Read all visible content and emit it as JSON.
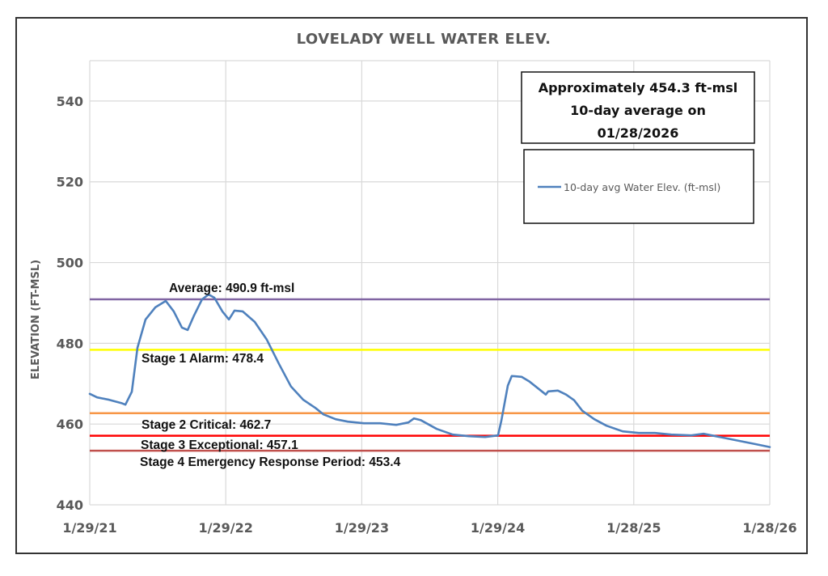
{
  "chart_data": {
    "type": "line",
    "title": "LOVELADY WELL WATER ELEV.",
    "xlabel": "",
    "ylabel": "ELEVATION (FT-MSL)",
    "ylim": [
      440,
      550
    ],
    "yticks": [
      440,
      460,
      480,
      500,
      520,
      540
    ],
    "ytick_labels": [
      "440",
      "460",
      "480",
      "500",
      "520",
      "540"
    ],
    "xlim_years_since_start": [
      0,
      5
    ],
    "xtick_labels": [
      "1/29/21",
      "1/29/22",
      "1/29/23",
      "1/29/24",
      "1/28/25",
      "1/28/26"
    ],
    "xtick_positions_years_since_start": [
      0,
      1,
      2,
      3,
      4,
      5
    ],
    "grid": true,
    "legend_placement": "top-right",
    "series": [
      {
        "name": "10-day avg Water Elev. (ft-msl)",
        "color": "#4f81bd",
        "x_unit": "years since 1/29/21",
        "points": [
          [
            0.0,
            467.5
          ],
          [
            0.054,
            466.6
          ],
          [
            0.143,
            466.0
          ],
          [
            0.232,
            465.2
          ],
          [
            0.262,
            464.8
          ],
          [
            0.309,
            468.0
          ],
          [
            0.351,
            478.9
          ],
          [
            0.41,
            485.9
          ],
          [
            0.482,
            488.9
          ],
          [
            0.559,
            490.5
          ],
          [
            0.618,
            487.9
          ],
          [
            0.678,
            483.9
          ],
          [
            0.72,
            483.3
          ],
          [
            0.767,
            486.9
          ],
          [
            0.826,
            490.9
          ],
          [
            0.874,
            492.1
          ],
          [
            0.916,
            491.3
          ],
          [
            0.975,
            487.9
          ],
          [
            1.023,
            485.9
          ],
          [
            1.064,
            488.1
          ],
          [
            1.124,
            487.9
          ],
          [
            1.213,
            485.3
          ],
          [
            1.302,
            480.9
          ],
          [
            1.391,
            474.9
          ],
          [
            1.48,
            469.3
          ],
          [
            1.57,
            466.0
          ],
          [
            1.659,
            464.0
          ],
          [
            1.718,
            462.4
          ],
          [
            1.808,
            461.2
          ],
          [
            1.897,
            460.6
          ],
          [
            2.016,
            460.2
          ],
          [
            2.135,
            460.2
          ],
          [
            2.253,
            459.8
          ],
          [
            2.343,
            460.4
          ],
          [
            2.384,
            461.4
          ],
          [
            2.432,
            461.0
          ],
          [
            2.551,
            458.8
          ],
          [
            2.669,
            457.4
          ],
          [
            2.788,
            457.0
          ],
          [
            2.907,
            456.8
          ],
          [
            3.002,
            457.2
          ],
          [
            3.026,
            460.8
          ],
          [
            3.074,
            469.5
          ],
          [
            3.103,
            471.9
          ],
          [
            3.175,
            471.7
          ],
          [
            3.234,
            470.5
          ],
          [
            3.294,
            468.9
          ],
          [
            3.353,
            467.3
          ],
          [
            3.371,
            468.1
          ],
          [
            3.442,
            468.3
          ],
          [
            3.502,
            467.3
          ],
          [
            3.561,
            465.9
          ],
          [
            3.621,
            463.3
          ],
          [
            3.71,
            461.2
          ],
          [
            3.799,
            459.6
          ],
          [
            3.918,
            458.2
          ],
          [
            4.037,
            457.8
          ],
          [
            4.156,
            457.8
          ],
          [
            4.275,
            457.4
          ],
          [
            4.423,
            457.2
          ],
          [
            4.513,
            457.6
          ],
          [
            4.602,
            457.0
          ],
          [
            4.75,
            456.0
          ],
          [
            4.899,
            455.0
          ],
          [
            5.0,
            454.3
          ]
        ]
      }
    ],
    "reference_lines": [
      {
        "name": "average",
        "label": "Average: 490.9 ft-msl",
        "value": 490.9,
        "color": "#8064a2"
      },
      {
        "name": "stage-1",
        "label": "Stage 1 Alarm: 478.4",
        "value": 478.4,
        "color": "#ffff00"
      },
      {
        "name": "stage-2",
        "label": "Stage 2 Critical: 462.7",
        "value": 462.7,
        "color": "#f79646"
      },
      {
        "name": "stage-3",
        "label": "Stage 3 Exceptional: 457.1",
        "value": 457.1,
        "color": "#ff0000"
      },
      {
        "name": "stage-4",
        "label": "Stage 4 Emergency Response Period: 453.4",
        "value": 453.4,
        "color": "#c0504d"
      }
    ],
    "annotation": {
      "lines": [
        "Approximately 454.3 ft-msl",
        "10-day average on",
        "01/28/2026"
      ]
    },
    "legend": {
      "entries": [
        "10-day avg Water Elev. (ft-msl)"
      ]
    }
  }
}
